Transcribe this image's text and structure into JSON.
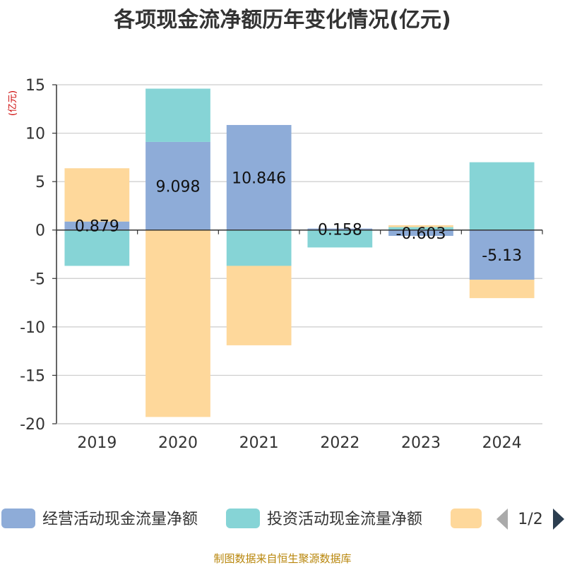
{
  "colors": {
    "operating": "#8eacd8",
    "investing": "#86d4d6",
    "financing": "#fed89b",
    "grid": "#cccccc",
    "axis": "#333333",
    "pager_active": "#2c3e50",
    "pager_inactive": "#aaaaaa"
  },
  "legend": {
    "page_indicator": "1/2",
    "prev_icon": "triangle-left-icon",
    "next_icon": "triangle-right-icon"
  },
  "footer": {
    "source": "制图数据来自恒生聚源数据库"
  },
  "chart_data": {
    "type": "bar",
    "stacked": true,
    "title": "各项现金流净额历年变化情况(亿元)",
    "ylabel": "(亿元)",
    "xlabel": "",
    "categories": [
      "2019",
      "2020",
      "2021",
      "2022",
      "2023",
      "2024"
    ],
    "ylim": [
      -20,
      15
    ],
    "yticks": [
      -20,
      -15,
      -10,
      -5,
      0,
      5,
      10,
      15
    ],
    "grid": true,
    "legend_position": "bottom",
    "series": [
      {
        "name": "经营活动现金流量净额",
        "color_key": "operating",
        "values": [
          0.879,
          9.098,
          10.846,
          0.158,
          -0.603,
          -5.13
        ],
        "labels": [
          "0.879",
          "9.098",
          "10.846",
          "0.158",
          "-0.603",
          "-5.13"
        ]
      },
      {
        "name": "投资活动现金流量净额",
        "color_key": "investing",
        "values": [
          -3.7,
          5.5,
          -3.7,
          -1.8,
          0.3,
          7.0
        ],
        "labels": []
      },
      {
        "name": "",
        "color_key": "financing",
        "values": [
          5.5,
          -19.3,
          -8.2,
          0.0,
          0.2,
          -1.9
        ],
        "labels": []
      }
    ]
  }
}
